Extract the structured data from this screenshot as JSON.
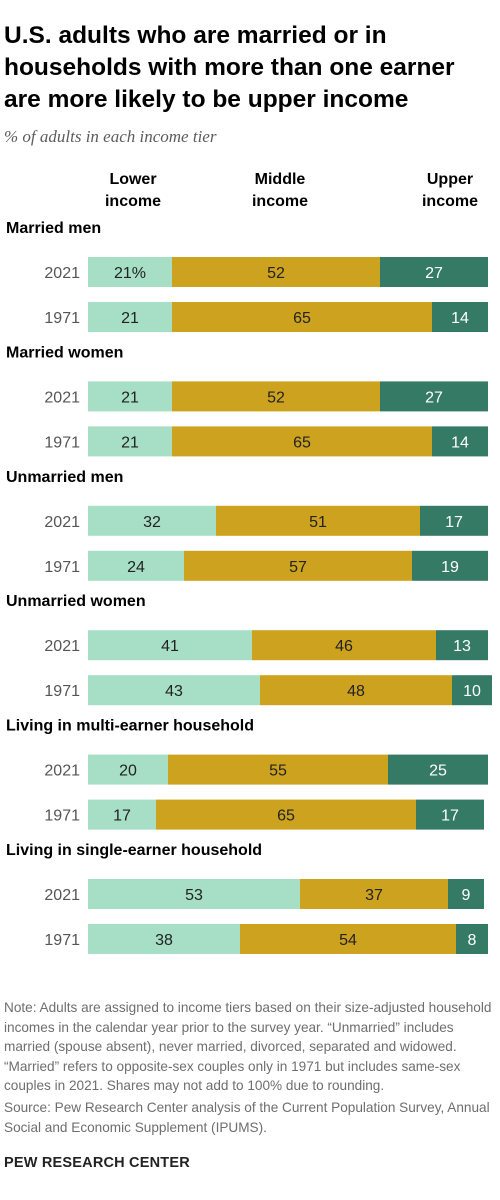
{
  "title": "U.S. adults who are married or in households with more than one earner are more likely to be upper income",
  "subtitle": "% of adults in each income tier",
  "chart_data": {
    "type": "bar",
    "stacked": "horizontal-100",
    "subtitle": "% of adults in each income tier",
    "tiers": [
      {
        "name": "Lower\nincome",
        "color": "#a6dfc5"
      },
      {
        "name": "Middle\nincome",
        "color": "#cda21e"
      },
      {
        "name": "Upper\nincome",
        "color": "#357a64"
      }
    ],
    "groups": [
      {
        "label": "Married men",
        "rows": [
          {
            "year": "2021",
            "values": [
              21,
              52,
              27
            ],
            "labels": [
              "21%",
              "52",
              "27"
            ]
          },
          {
            "year": "1971",
            "values": [
              21,
              65,
              14
            ],
            "labels": [
              "21",
              "65",
              "14"
            ]
          }
        ]
      },
      {
        "label": "Married women",
        "rows": [
          {
            "year": "2021",
            "values": [
              21,
              52,
              27
            ],
            "labels": [
              "21",
              "52",
              "27"
            ]
          },
          {
            "year": "1971",
            "values": [
              21,
              65,
              14
            ],
            "labels": [
              "21",
              "65",
              "14"
            ]
          }
        ]
      },
      {
        "label": "Unmarried men",
        "rows": [
          {
            "year": "2021",
            "values": [
              32,
              51,
              17
            ],
            "labels": [
              "32",
              "51",
              "17"
            ]
          },
          {
            "year": "1971",
            "values": [
              24,
              57,
              19
            ],
            "labels": [
              "24",
              "57",
              "19"
            ]
          }
        ]
      },
      {
        "label": "Unmarried women",
        "rows": [
          {
            "year": "2021",
            "values": [
              41,
              46,
              13
            ],
            "labels": [
              "41",
              "46",
              "13"
            ]
          },
          {
            "year": "1971",
            "values": [
              43,
              48,
              10
            ],
            "labels": [
              "43",
              "48",
              "10"
            ]
          }
        ]
      },
      {
        "label": "Living in multi-earner household",
        "rows": [
          {
            "year": "2021",
            "values": [
              20,
              55,
              25
            ],
            "labels": [
              "20",
              "55",
              "25"
            ]
          },
          {
            "year": "1971",
            "values": [
              17,
              65,
              17
            ],
            "labels": [
              "17",
              "65",
              "17"
            ]
          }
        ]
      },
      {
        "label": "Living in single-earner household",
        "rows": [
          {
            "year": "2021",
            "values": [
              53,
              37,
              9
            ],
            "labels": [
              "53",
              "37",
              "9"
            ]
          },
          {
            "year": "1971",
            "values": [
              38,
              54,
              8
            ],
            "labels": [
              "38",
              "54",
              "8"
            ]
          }
        ]
      }
    ]
  },
  "note": "Note: Adults are assigned to income tiers based on their size-adjusted household incomes in the calendar year prior to the survey year. “Unmarried” includes married (spouse absent), never married, divorced, separated and widowed. “Married” refers to opposite-sex couples only in 1971 but includes same-sex couples in 2021. Shares may not add to 100% due to rounding.",
  "source": "Source: Pew Research Center analysis of the Current Population Survey, Annual Social and Economic Supplement (IPUMS).",
  "footer": "PEW RESEARCH CENTER"
}
